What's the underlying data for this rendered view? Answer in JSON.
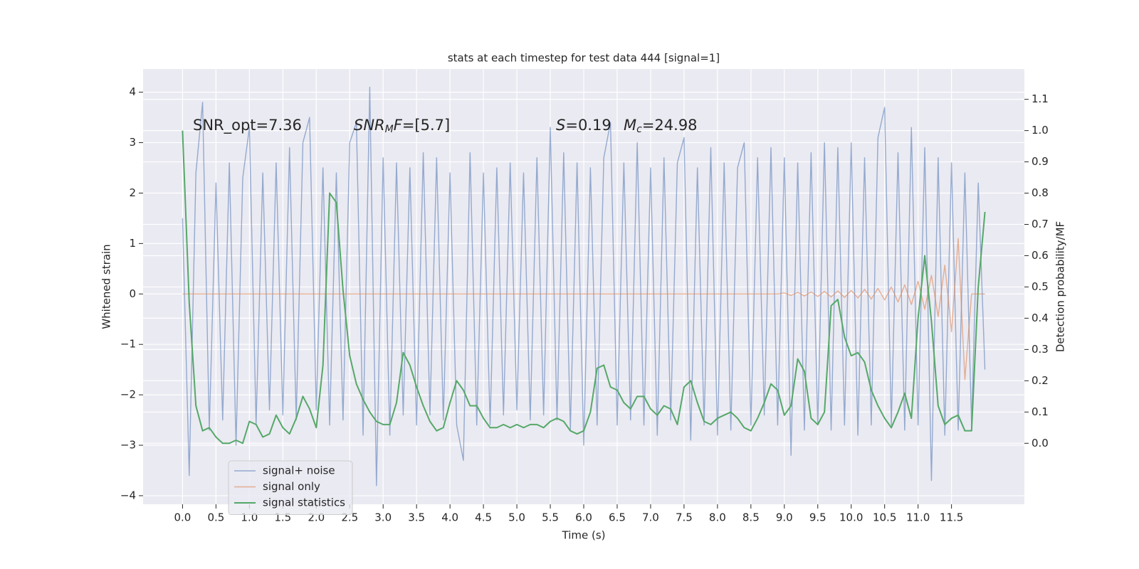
{
  "chart_data": {
    "type": "line",
    "title": "stats at each timestep for test data 444 [signal=1]",
    "xlabel": "Time (s)",
    "ylabel": "Whitened strain",
    "y2label": "Detection probability/MF",
    "grid": true,
    "legend": "lower left",
    "xlim": [
      -0.59,
      12.59
    ],
    "ylim": [
      -4.17,
      4.46
    ],
    "y2lim": [
      -0.195,
      1.197
    ],
    "xticks": [
      {
        "value": 0,
        "label": "0.0"
      },
      0.5,
      {
        "value": 1,
        "label": "1.0"
      },
      1.5,
      {
        "value": 2,
        "label": "2.0"
      },
      2.5,
      {
        "value": 3,
        "label": "3.0"
      },
      3.5,
      {
        "value": 4,
        "label": "4.0"
      },
      4.5,
      {
        "value": 5,
        "label": "5.0"
      },
      5.5,
      {
        "value": 6,
        "label": "6.0"
      },
      6.5,
      {
        "value": 7,
        "label": "7.0"
      },
      7.5,
      {
        "value": 8,
        "label": "8.0"
      },
      8.5,
      {
        "value": 9,
        "label": "9.0"
      },
      9.5,
      {
        "value": 10,
        "label": "10.0"
      },
      10.5,
      {
        "value": 11,
        "label": "11.0"
      },
      11.5
    ],
    "yticks": [
      {
        "value": -4,
        "label": "−4"
      },
      {
        "value": -3,
        "label": "−3"
      },
      {
        "value": -2,
        "label": "−2"
      },
      {
        "value": -1,
        "label": "−1"
      },
      0,
      1,
      2,
      3,
      4
    ],
    "y2ticks": [
      {
        "value": 0,
        "label": "0.0"
      },
      0.1,
      0.2,
      0.3,
      0.4,
      0.5,
      0.6,
      0.7,
      0.8,
      0.9,
      {
        "value": 1,
        "label": "1.0"
      },
      1.1
    ],
    "annotations": [
      {
        "parts": [
          {
            "text": "SNR_opt=7.36",
            "style": "normal"
          }
        ]
      },
      {
        "parts": [
          {
            "text": "SNR",
            "style": "italic"
          },
          {
            "text": "M",
            "style": "italic-sub"
          },
          {
            "text": "F",
            "style": "italic"
          },
          {
            "text": "=[5.7]",
            "style": "normal"
          }
        ]
      },
      {
        "parts": [
          {
            "text": "S",
            "style": "italic"
          },
          {
            "text": "=0.19",
            "style": "normal"
          }
        ]
      },
      {
        "parts": [
          {
            "text": "M",
            "style": "italic"
          },
          {
            "text": "c",
            "style": "italic-sub"
          },
          {
            "text": "=24.98",
            "style": "normal"
          }
        ]
      }
    ],
    "x": [
      0,
      0.1,
      0.2,
      0.3,
      0.4,
      0.5,
      0.6,
      0.7,
      0.8,
      0.9,
      1,
      1.1,
      1.2,
      1.3,
      1.4,
      1.5,
      1.6,
      1.7,
      1.8,
      1.9,
      2,
      2.1,
      2.2,
      2.3,
      2.4,
      2.5,
      2.6,
      2.7,
      2.8,
      2.9,
      3,
      3.1,
      3.2,
      3.3,
      3.4,
      3.5,
      3.6,
      3.7,
      3.8,
      3.9,
      4,
      4.1,
      4.2,
      4.3,
      4.4,
      4.5,
      4.6,
      4.7,
      4.8,
      4.9,
      5,
      5.1,
      5.2,
      5.3,
      5.4,
      5.5,
      5.6,
      5.7,
      5.8,
      5.9,
      6,
      6.1,
      6.2,
      6.3,
      6.4,
      6.5,
      6.6,
      6.7,
      6.8,
      6.9,
      7,
      7.1,
      7.2,
      7.3,
      7.4,
      7.5,
      7.6,
      7.7,
      7.8,
      7.9,
      8,
      8.1,
      8.2,
      8.3,
      8.4,
      8.5,
      8.6,
      8.7,
      8.8,
      8.9,
      9,
      9.1,
      9.2,
      9.3,
      9.4,
      9.5,
      9.6,
      9.7,
      9.8,
      9.9,
      10,
      10.1,
      10.2,
      10.3,
      10.4,
      10.5,
      10.6,
      10.7,
      10.8,
      10.9,
      11,
      11.1,
      11.2,
      11.3,
      11.4,
      11.5,
      11.6,
      11.7,
      11.8,
      11.9,
      12
    ],
    "series": [
      {
        "name": "signal+ noise",
        "color": "#4c72b0",
        "values": [
          1.5,
          -3.6,
          2.4,
          3.8,
          -2.7,
          2.2,
          -2.5,
          2.6,
          -3.0,
          2.3,
          3.3,
          -2.6,
          2.4,
          -2.3,
          2.6,
          -2.4,
          2.9,
          -2.5,
          3.0,
          3.5,
          -2.3,
          2.5,
          -2.6,
          2.4,
          -2.5,
          3.0,
          3.4,
          -2.8,
          4.1,
          -3.8,
          2.7,
          -2.8,
          2.6,
          -2.4,
          2.5,
          -2.6,
          2.8,
          -2.4,
          2.7,
          -2.5,
          2.4,
          -2.6,
          -3.3,
          2.8,
          -2.6,
          2.4,
          -2.6,
          2.5,
          -2.4,
          2.6,
          -2.3,
          2.4,
          -2.5,
          2.7,
          -2.4,
          3.3,
          -2.5,
          2.8,
          -2.7,
          2.6,
          -3.0,
          2.5,
          -2.6,
          2.7,
          3.4,
          -2.6,
          2.6,
          -2.5,
          3.0,
          -2.6,
          2.5,
          -2.8,
          2.7,
          -2.5,
          2.6,
          3.1,
          -2.9,
          2.5,
          -2.6,
          2.9,
          -2.8,
          2.6,
          -2.7,
          2.5,
          3.0,
          -2.6,
          2.7,
          -2.4,
          2.9,
          -2.6,
          2.7,
          -3.2,
          2.6,
          -2.7,
          2.8,
          -2.6,
          3.0,
          -2.7,
          2.9,
          -2.6,
          3.0,
          -2.8,
          2.7,
          -2.6,
          3.1,
          3.7,
          -2.6,
          2.8,
          -2.7,
          3.3,
          -2.6,
          2.9,
          -3.7,
          2.7,
          -2.8,
          2.6,
          -2.7,
          2.4,
          -2.6,
          2.2,
          -1.5
        ]
      },
      {
        "name": "signal only",
        "color": "#dd8452",
        "values": [
          0,
          0,
          0,
          0,
          0,
          0,
          0,
          0,
          0,
          0,
          0,
          0,
          0,
          0,
          0,
          0,
          0,
          0,
          0,
          0,
          0,
          0,
          0,
          0,
          0,
          0,
          0,
          0,
          0,
          0,
          0,
          0,
          0,
          0,
          0,
          0,
          0,
          0,
          0,
          0,
          0,
          0,
          0,
          0,
          0,
          0,
          0,
          0,
          0,
          0,
          0,
          0,
          0,
          0,
          0,
          0,
          0,
          0,
          0,
          0,
          0,
          0,
          0,
          0,
          0,
          0,
          0,
          0,
          0,
          0,
          0,
          0,
          0,
          0,
          0,
          0,
          0,
          0,
          0,
          0,
          0,
          0,
          0,
          0,
          0,
          0,
          0,
          0,
          0,
          0,
          0.02,
          -0.03,
          0.03,
          -0.04,
          0.04,
          -0.05,
          0.05,
          -0.06,
          0.06,
          -0.07,
          0.07,
          -0.08,
          0.09,
          -0.1,
          0.11,
          -0.12,
          0.14,
          -0.16,
          0.18,
          -0.21,
          0.25,
          -0.3,
          0.37,
          -0.45,
          0.57,
          -0.75,
          1.1,
          -1.7,
          0,
          0,
          0
        ]
      },
      {
        "name": "signal statistics",
        "color": "#55a868",
        "axis": "y2",
        "values": [
          1.0,
          0.45,
          0.12,
          0.04,
          0.05,
          0.02,
          0.0,
          0.0,
          0.01,
          0.0,
          0.07,
          0.06,
          0.02,
          0.03,
          0.09,
          0.05,
          0.03,
          0.08,
          0.15,
          0.11,
          0.05,
          0.25,
          0.8,
          0.77,
          0.49,
          0.28,
          0.19,
          0.14,
          0.1,
          0.07,
          0.06,
          0.06,
          0.13,
          0.29,
          0.25,
          0.18,
          0.12,
          0.07,
          0.04,
          0.05,
          0.13,
          0.2,
          0.17,
          0.12,
          0.12,
          0.08,
          0.05,
          0.05,
          0.06,
          0.05,
          0.06,
          0.05,
          0.06,
          0.06,
          0.05,
          0.07,
          0.08,
          0.07,
          0.04,
          0.03,
          0.04,
          0.1,
          0.24,
          0.25,
          0.18,
          0.17,
          0.13,
          0.11,
          0.15,
          0.15,
          0.11,
          0.09,
          0.12,
          0.11,
          0.06,
          0.18,
          0.2,
          0.13,
          0.07,
          0.06,
          0.08,
          0.09,
          0.1,
          0.08,
          0.05,
          0.04,
          0.08,
          0.13,
          0.19,
          0.17,
          0.09,
          0.12,
          0.27,
          0.23,
          0.08,
          0.06,
          0.1,
          0.44,
          0.46,
          0.34,
          0.28,
          0.29,
          0.26,
          0.17,
          0.12,
          0.08,
          0.05,
          0.1,
          0.16,
          0.08,
          0.4,
          0.6,
          0.39,
          0.12,
          0.06,
          0.08,
          0.09,
          0.04,
          0.04,
          0.5,
          0.74
        ]
      }
    ]
  }
}
